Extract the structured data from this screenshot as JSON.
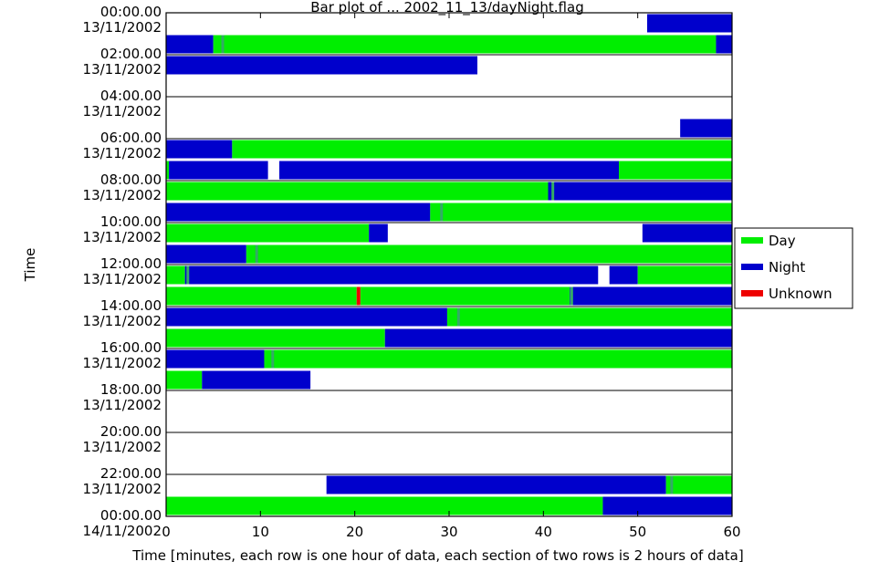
{
  "chart_data": {
    "type": "bar",
    "title": "Bar plot of ... 2002_11_13/dayNight.flag",
    "xlabel": "Time [minutes, each row is one hour of data, each section of two rows is 2 hours of data]",
    "ylabel": "Time",
    "xlim": [
      0,
      60
    ],
    "x_ticks": [
      "0",
      "10",
      "20",
      "30",
      "40",
      "50",
      "60"
    ],
    "x_tick_values": [
      0,
      10,
      20,
      30,
      40,
      50,
      60
    ],
    "y_tick_labels": [
      {
        "time": "00:00.00",
        "date": "13/11/2002"
      },
      {
        "time": "02:00.00",
        "date": "13/11/2002"
      },
      {
        "time": "04:00.00",
        "date": "13/11/2002"
      },
      {
        "time": "06:00.00",
        "date": "13/11/2002"
      },
      {
        "time": "08:00.00",
        "date": "13/11/2002"
      },
      {
        "time": "10:00.00",
        "date": "13/11/2002"
      },
      {
        "time": "12:00.00",
        "date": "13/11/2002"
      },
      {
        "time": "14:00.00",
        "date": "13/11/2002"
      },
      {
        "time": "16:00.00",
        "date": "13/11/2002"
      },
      {
        "time": "18:00.00",
        "date": "13/11/2002"
      },
      {
        "time": "20:00.00",
        "date": "13/11/2002"
      },
      {
        "time": "22:00.00",
        "date": "13/11/2002"
      },
      {
        "time": "00:00.00",
        "date": "14/11/2002"
      }
    ],
    "legend": {
      "placement": "right",
      "entries": [
        {
          "name": "Day",
          "color": "#00ee00"
        },
        {
          "name": "Night",
          "color": "#0000cc"
        },
        {
          "name": "Unknown",
          "color": "#ee0000"
        }
      ]
    },
    "colors": {
      "day": "#00ee00",
      "night": "#0000cc",
      "unknown": "#ee0000",
      "transition": "#33aa66"
    },
    "rows": [
      {
        "hour": 0,
        "segments": [
          {
            "start": 51,
            "end": 60,
            "state": "night"
          }
        ]
      },
      {
        "hour": 1,
        "segments": [
          {
            "start": 0,
            "end": 5,
            "state": "night"
          },
          {
            "start": 5,
            "end": 58.3,
            "state": "day"
          },
          {
            "start": 58.3,
            "end": 60,
            "state": "night"
          }
        ]
      },
      {
        "hour": 2,
        "segments": [
          {
            "start": 0,
            "end": 33,
            "state": "night"
          }
        ]
      },
      {
        "hour": 3,
        "segments": []
      },
      {
        "hour": 4,
        "segments": []
      },
      {
        "hour": 5,
        "segments": [
          {
            "start": 54.5,
            "end": 60,
            "state": "night"
          }
        ]
      },
      {
        "hour": 6,
        "segments": [
          {
            "start": 0,
            "end": 7,
            "state": "night"
          },
          {
            "start": 7,
            "end": 60,
            "state": "day"
          }
        ]
      },
      {
        "hour": 7,
        "segments": [
          {
            "start": 0,
            "end": 0.3,
            "state": "day"
          },
          {
            "start": 0.3,
            "end": 10.8,
            "state": "night"
          },
          {
            "start": 12,
            "end": 48,
            "state": "night"
          },
          {
            "start": 48,
            "end": 60,
            "state": "day"
          }
        ]
      },
      {
        "hour": 8,
        "segments": [
          {
            "start": 0,
            "end": 40.5,
            "state": "day"
          },
          {
            "start": 40.5,
            "end": 60,
            "state": "night"
          }
        ]
      },
      {
        "hour": 9,
        "segments": [
          {
            "start": 0,
            "end": 28,
            "state": "night"
          },
          {
            "start": 28,
            "end": 60,
            "state": "day"
          }
        ]
      },
      {
        "hour": 10,
        "segments": [
          {
            "start": 0,
            "end": 21.5,
            "state": "day"
          },
          {
            "start": 21.5,
            "end": 23.5,
            "state": "night"
          },
          {
            "start": 50.5,
            "end": 60,
            "state": "night"
          }
        ]
      },
      {
        "hour": 11,
        "segments": [
          {
            "start": 0,
            "end": 8.5,
            "state": "night"
          },
          {
            "start": 8.5,
            "end": 60,
            "state": "day"
          }
        ]
      },
      {
        "hour": 12,
        "segments": [
          {
            "start": 0,
            "end": 2,
            "state": "day"
          },
          {
            "start": 2,
            "end": 45.8,
            "state": "night"
          },
          {
            "start": 47,
            "end": 50,
            "state": "night"
          },
          {
            "start": 50,
            "end": 60,
            "state": "day"
          }
        ]
      },
      {
        "hour": 13,
        "segments": [
          {
            "start": 0,
            "end": 20.2,
            "state": "day"
          },
          {
            "start": 20.2,
            "end": 20.6,
            "state": "unknown"
          },
          {
            "start": 20.6,
            "end": 42.8,
            "state": "day"
          },
          {
            "start": 42.8,
            "end": 60,
            "state": "night"
          }
        ]
      },
      {
        "hour": 14,
        "segments": [
          {
            "start": 0,
            "end": 3,
            "state": "night"
          },
          {
            "start": 3,
            "end": 29.8,
            "state": "night"
          },
          {
            "start": 29.8,
            "end": 60,
            "state": "day"
          }
        ]
      },
      {
        "hour": 15,
        "segments": [
          {
            "start": 0,
            "end": 23.2,
            "state": "day"
          },
          {
            "start": 23.2,
            "end": 60,
            "state": "night"
          }
        ]
      },
      {
        "hour": 16,
        "segments": [
          {
            "start": 0,
            "end": 10.4,
            "state": "night"
          },
          {
            "start": 10.4,
            "end": 60,
            "state": "day"
          }
        ]
      },
      {
        "hour": 17,
        "segments": [
          {
            "start": 0,
            "end": 3.8,
            "state": "day"
          },
          {
            "start": 3.8,
            "end": 15.3,
            "state": "night"
          }
        ]
      },
      {
        "hour": 18,
        "segments": []
      },
      {
        "hour": 19,
        "segments": []
      },
      {
        "hour": 20,
        "segments": []
      },
      {
        "hour": 21,
        "segments": []
      },
      {
        "hour": 22,
        "segments": [
          {
            "start": 17,
            "end": 53,
            "state": "night"
          },
          {
            "start": 53,
            "end": 60,
            "state": "day"
          }
        ]
      },
      {
        "hour": 23,
        "segments": [
          {
            "start": 0,
            "end": 46.3,
            "state": "day"
          },
          {
            "start": 46.3,
            "end": 60,
            "state": "night"
          }
        ]
      }
    ],
    "transition_markers": [
      {
        "hour": 1,
        "x": 6.0
      },
      {
        "hour": 8,
        "x": 41.0
      },
      {
        "hour": 9,
        "x": 29.2
      },
      {
        "hour": 11,
        "x": 9.6
      },
      {
        "hour": 12,
        "x": 2.3
      },
      {
        "hour": 13,
        "x": 43.0
      },
      {
        "hour": 14,
        "x": 31.0
      },
      {
        "hour": 16,
        "x": 11.3
      },
      {
        "hour": 22,
        "x": 53.6
      }
    ]
  }
}
